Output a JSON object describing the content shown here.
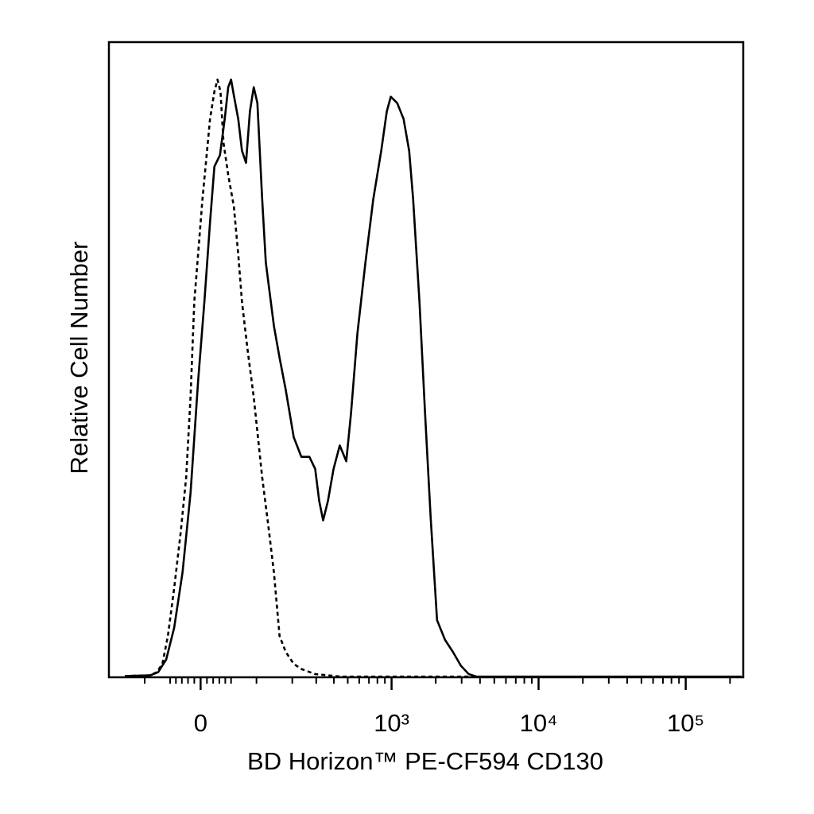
{
  "chart_data": {
    "type": "histogram-line",
    "xlabel": "BD Horizon™ PE-CF594 CD130",
    "ylabel": "Relative Cell Number",
    "xscale": "biexponential",
    "xlim": [
      -200,
      246000
    ],
    "ylim": [
      0,
      100
    ],
    "xticks": [
      0,
      {
        "value": 1000,
        "label": "10³"
      },
      {
        "value": 10000,
        "label": "10⁴"
      },
      {
        "value": 100000,
        "label": "10⁵"
      }
    ],
    "xminorticks": [
      -100,
      -50,
      -40,
      -30,
      -20,
      -10,
      10,
      20,
      30,
      40,
      50,
      100,
      200,
      300,
      400,
      500,
      600,
      700,
      800,
      900,
      2000,
      3000,
      4000,
      5000,
      6000,
      7000,
      8000,
      9000,
      20000,
      30000,
      40000,
      50000,
      60000,
      70000,
      80000,
      90000,
      200000
    ],
    "series": [
      {
        "color": "#000000",
        "dashed": false,
        "x": [
          -150,
          -88,
          -72,
          -57,
          -43,
          -29,
          -16,
          -4,
          6,
          15,
          22,
          31,
          39,
          45,
          50,
          55,
          63,
          70,
          78,
          86,
          94,
          102,
          113,
          122,
          143,
          159,
          178,
          205,
          234,
          268,
          295,
          315,
          336,
          364,
          398,
          440,
          488,
          527,
          583,
          662,
          750,
          850,
          928,
          988,
          1093,
          1208,
          1318,
          1403,
          1550,
          1692,
          1846,
          2040,
          2313,
          2616,
          2969,
          3353,
          3798,
          13211,
          240000
        ],
        "values": [
          0.2,
          0.3,
          0.8,
          2.8,
          7.8,
          16.5,
          29.0,
          46.6,
          59.1,
          71.6,
          80.4,
          82.2,
          87.9,
          92.9,
          94.1,
          91.6,
          87.9,
          82.9,
          81.0,
          89.1,
          92.9,
          90.4,
          75.3,
          65.3,
          55.3,
          50.3,
          45.3,
          37.8,
          34.7,
          34.7,
          32.8,
          27.8,
          24.7,
          27.8,
          32.8,
          36.5,
          34.0,
          41.6,
          54.1,
          65.3,
          75.3,
          82.9,
          89.1,
          91.4,
          90.4,
          87.9,
          82.9,
          75.3,
          59.1,
          41.6,
          25.3,
          9.0,
          5.9,
          4.0,
          1.8,
          0.5,
          0.1,
          0.1,
          0.1
        ]
      },
      {
        "color": "#000000",
        "dashed": true,
        "x": [
          -150,
          -88,
          -75,
          -64,
          -54,
          -43,
          -32,
          -23,
          -16,
          -10,
          -4,
          3,
          9,
          15,
          22,
          27,
          32,
          37,
          45,
          55,
          63,
          70,
          81,
          94,
          113,
          128,
          143,
          159,
          178,
          205,
          234,
          295,
          452,
          3798
        ],
        "values": [
          0.2,
          0.3,
          0.8,
          2.1,
          6.5,
          14.0,
          22.8,
          31.5,
          44.1,
          59.1,
          66.6,
          75.3,
          81.6,
          87.9,
          92.2,
          94.1,
          92.2,
          84.1,
          79.1,
          74.1,
          66.6,
          59.1,
          51.6,
          44.1,
          31.5,
          24.0,
          16.5,
          6.5,
          4.0,
          2.1,
          1.3,
          0.5,
          0.1,
          0.1
        ]
      }
    ]
  }
}
